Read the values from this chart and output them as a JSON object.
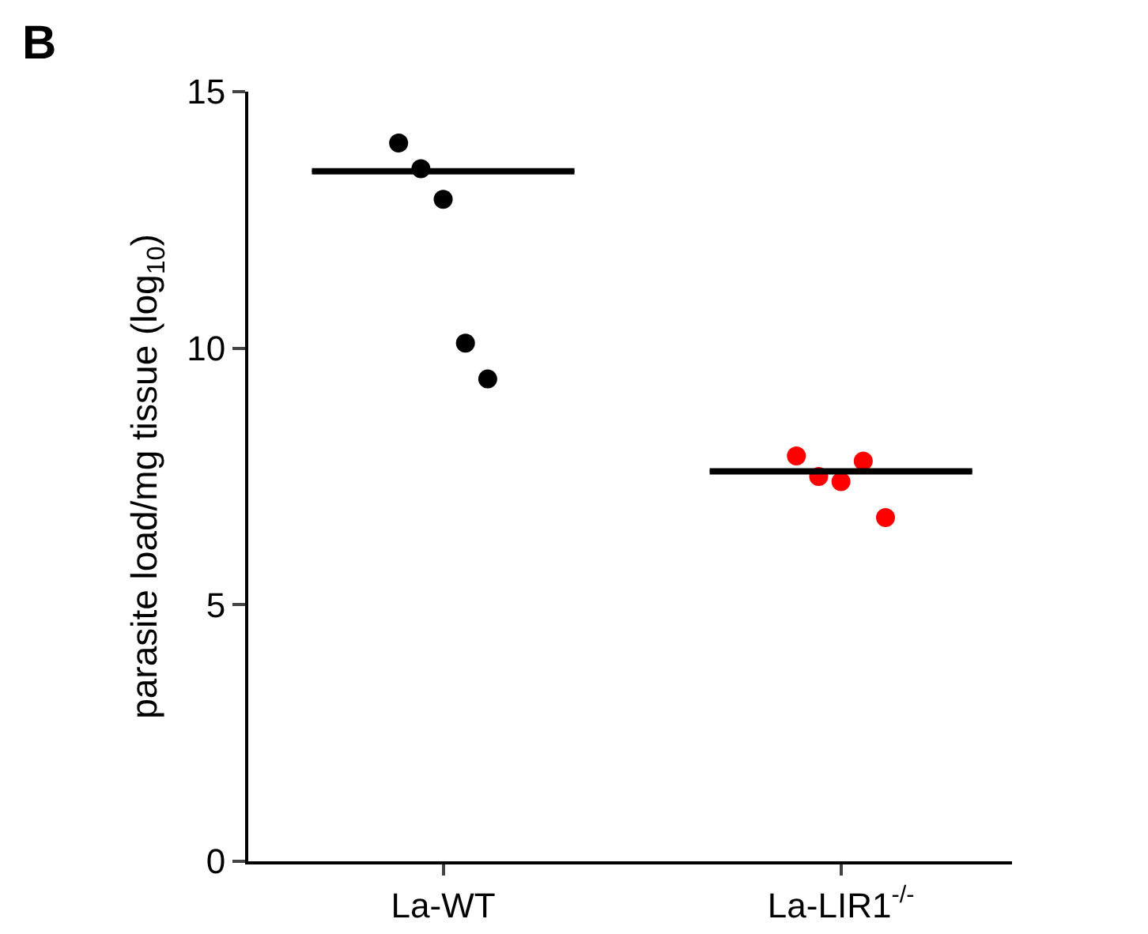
{
  "chart_data": {
    "type": "scatter",
    "ylabel": "parasite load/mg tissue (log$_{10}$)",
    "categories": [
      "La-WT",
      "La-LIR1$^{-/-}$"
    ],
    "series": [
      {
        "color": "#000000",
        "x": [
          "La-WT",
          "La-WT",
          "La-WT",
          "La-WT",
          "La-WT"
        ],
        "values": [
          14.0,
          13.5,
          12.9,
          10.1,
          9.4
        ]
      },
      {
        "color": "#ff0000",
        "x": [
          "La-LIR1$^{-/-}$",
          "La-LIR1$^{-/-}$",
          "La-LIR1$^{-/-}$",
          "La-LIR1$^{-/-}$",
          "La-LIR1$^{-/-}$"
        ],
        "values": [
          7.9,
          7.5,
          7.4,
          7.8,
          6.7
        ]
      },
      {
        "type": "box",
        "color": "#000000",
        "boxes": [
          {
            "low": 13.45,
            "q1": 13.45,
            "median": 13.45,
            "q3": 13.45,
            "high": 13.45
          },
          {
            "low": 7.6,
            "q1": 7.6,
            "median": 7.6,
            "q3": 7.6,
            "high": 7.6
          }
        ]
      }
    ],
    "ylim": [
      0,
      15
    ],
    "yticks": [
      0,
      5,
      10,
      15
    ],
    "grid": false,
    "marker": "circle",
    "annotations": [
      "B"
    ]
  }
}
